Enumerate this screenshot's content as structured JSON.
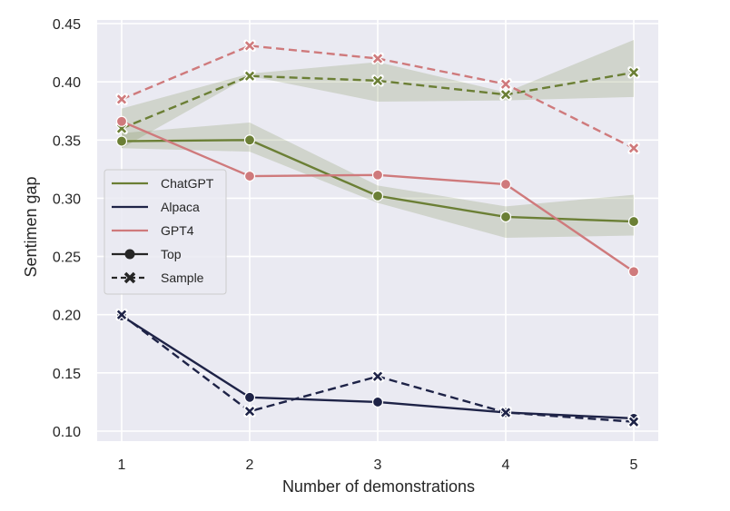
{
  "chart_data": {
    "type": "line",
    "title": "",
    "xlabel": "Number of demonstrations",
    "ylabel": "Sentimen gap",
    "x": [
      1,
      2,
      3,
      4,
      5
    ],
    "x_ticks": [
      "1",
      "2",
      "3",
      "4",
      "5"
    ],
    "y_ticks": [
      "0.10",
      "0.15",
      "0.20",
      "0.25",
      "0.30",
      "0.35",
      "0.40",
      "0.45"
    ],
    "ylim": [
      0.095,
      0.453
    ],
    "xlim": [
      0.81,
      5.19
    ],
    "grid": true,
    "background": "#eaeaf2",
    "legend": {
      "position": "center-left",
      "entries": [
        {
          "label": "ChatGPT",
          "kind": "color",
          "color": "#6b7f35"
        },
        {
          "label": "Alpaca",
          "kind": "color",
          "color": "#1e2347"
        },
        {
          "label": "GPT4",
          "kind": "color",
          "color": "#cf7a7c"
        },
        {
          "label": "Top",
          "kind": "style",
          "marker": "circle",
          "dash": "solid"
        },
        {
          "label": "Sample",
          "kind": "style",
          "marker": "x",
          "dash": "dashed"
        }
      ]
    },
    "series": [
      {
        "name": "ChatGPT",
        "style": "Top",
        "color": "#6b7f35",
        "marker": "circle",
        "dash": "solid",
        "values": [
          0.349,
          0.35,
          0.302,
          0.284,
          0.28
        ],
        "ci_low": [
          0.343,
          0.34,
          0.296,
          0.266,
          0.268
        ],
        "ci_high": [
          0.356,
          0.365,
          0.311,
          0.293,
          0.303
        ]
      },
      {
        "name": "ChatGPT",
        "style": "Sample",
        "color": "#6b7f35",
        "marker": "x",
        "dash": "dashed",
        "values": [
          0.36,
          0.405,
          0.401,
          0.389,
          0.408
        ],
        "ci_low": [
          0.343,
          0.405,
          0.383,
          0.384,
          0.387
        ],
        "ci_high": [
          0.377,
          0.407,
          0.417,
          0.391,
          0.436
        ]
      },
      {
        "name": "Alpaca",
        "style": "Top",
        "color": "#1e2347",
        "marker": "circle",
        "dash": "solid",
        "values": [
          0.199,
          0.129,
          0.125,
          0.116,
          0.111
        ]
      },
      {
        "name": "Alpaca",
        "style": "Sample",
        "color": "#1e2347",
        "marker": "x",
        "dash": "dashed",
        "values": [
          0.2,
          0.117,
          0.147,
          0.116,
          0.108
        ]
      },
      {
        "name": "GPT4",
        "style": "Top",
        "color": "#cf7a7c",
        "marker": "circle",
        "dash": "solid",
        "values": [
          0.366,
          0.319,
          0.32,
          0.312,
          0.237
        ]
      },
      {
        "name": "GPT4",
        "style": "Sample",
        "color": "#cf7a7c",
        "marker": "x",
        "dash": "dashed",
        "values": [
          0.385,
          0.431,
          0.42,
          0.398,
          0.343
        ]
      }
    ]
  }
}
